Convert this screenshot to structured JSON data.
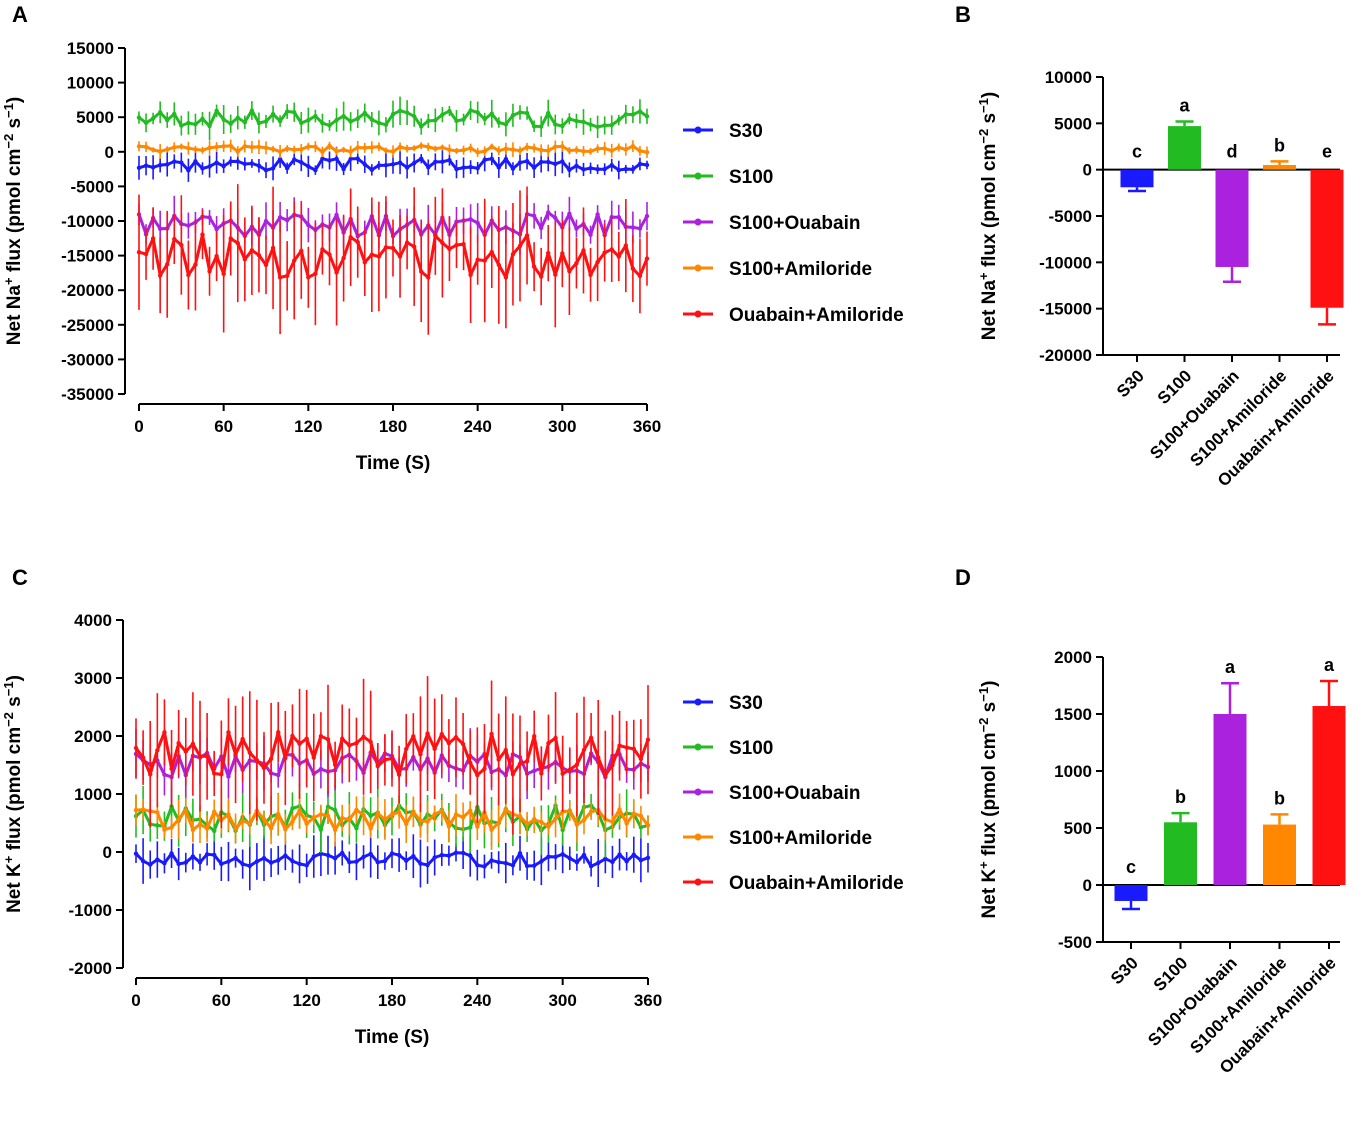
{
  "colors": {
    "S30": "#1a1aff",
    "S100": "#22bb22",
    "S100+Ouabain": "#aa22dd",
    "S100+Amiloride": "#ff8800",
    "Ouabain+Amiloride": "#ff1111"
  },
  "chart_data": [
    {
      "panel": "A",
      "type": "line",
      "xlabel": "Time (S)",
      "ylabel": "Net Na+ flux (pmol cm-2 s-1)",
      "ylabel_parts": {
        "pre": "Net Na",
        "sup1": "+",
        "mid": " flux (pmol cm",
        "sup2": "−2",
        "mid2": " s",
        "sup3": "−1",
        "post": ")"
      },
      "xlim": [
        0,
        360
      ],
      "ylim": [
        -35000,
        15000
      ],
      "xticks": [
        0,
        60,
        120,
        180,
        240,
        300,
        360
      ],
      "yticks": [
        15000,
        10000,
        5000,
        0,
        -5000,
        -10000,
        -15000,
        -20000,
        -25000,
        -30000,
        -35000
      ],
      "series": [
        {
          "name": "S30",
          "amp": 900,
          "err": 1500,
          "seed": 3,
          "values_mean": -1800
        },
        {
          "name": "S100",
          "amp": 1200,
          "err": 1800,
          "seed": 7,
          "values_mean": 4800
        },
        {
          "name": "S100+Ouabain",
          "amp": 1800,
          "err": 2500,
          "seed": 11,
          "values_mean": -10500
        },
        {
          "name": "S100+Amiloride",
          "amp": 500,
          "err": 900,
          "seed": 5,
          "values_mean": 400
        },
        {
          "name": "Ouabain+Amiloride",
          "amp": 3200,
          "err": 7500,
          "seed": 13,
          "values_mean": -15000
        }
      ]
    },
    {
      "panel": "B",
      "type": "bar",
      "ylabel": "Net Na+ flux (pmol cm-2 s-1)",
      "ylabel_parts": {
        "pre": "Net Na",
        "sup1": "+",
        "mid": " flux (pmol cm",
        "sup2": "−2",
        "mid2": " s",
        "sup3": "−1",
        "post": ")"
      },
      "ylim": [
        -20000,
        10000
      ],
      "yticks": [
        10000,
        5000,
        0,
        -5000,
        -10000,
        -15000,
        -20000
      ],
      "categories": [
        "S30",
        "S100",
        "S100+Ouabain",
        "S100+Amiloride",
        "Ouabain+Amiloride"
      ],
      "values": [
        -1900,
        4700,
        -10500,
        500,
        -14900
      ],
      "errors": [
        400,
        500,
        1600,
        400,
        1800
      ],
      "letters": [
        "c",
        "a",
        "d",
        "b",
        "e"
      ]
    },
    {
      "panel": "C",
      "type": "line",
      "xlabel": "Time (S)",
      "ylabel": "Net K+ flux (pmol cm-2 s-1)",
      "ylabel_parts": {
        "pre": "Net K",
        "sup1": "+",
        "mid": " flux (pmol cm",
        "sup2": "−2",
        "mid2": " s",
        "sup3": "−1",
        "post": ")"
      },
      "xlim": [
        0,
        360
      ],
      "ylim": [
        -2000,
        4000
      ],
      "xticks": [
        0,
        60,
        120,
        180,
        240,
        300,
        360
      ],
      "yticks": [
        4000,
        3000,
        2000,
        1000,
        0,
        -1000,
        -2000
      ],
      "series": [
        {
          "name": "S30",
          "amp": 120,
          "err": 350,
          "seed": 17,
          "values_mean": -130
        },
        {
          "name": "S100",
          "amp": 220,
          "err": 400,
          "seed": 19,
          "values_mean": 580
        },
        {
          "name": "S100+Ouabain",
          "amp": 220,
          "err": 400,
          "seed": 23,
          "values_mean": 1500
        },
        {
          "name": "S100+Amiloride",
          "amp": 180,
          "err": 300,
          "seed": 29,
          "values_mean": 560
        },
        {
          "name": "Ouabain+Amiloride",
          "amp": 380,
          "err": 900,
          "seed": 31,
          "values_mean": 1700
        }
      ]
    },
    {
      "panel": "D",
      "type": "bar",
      "ylabel": "Net K+ flux (pmol cm-2 s-1)",
      "ylabel_parts": {
        "pre": "Net K",
        "sup1": "+",
        "mid": " flux (pmol cm",
        "sup2": "−2",
        "mid2": " s",
        "sup3": "−1",
        "post": ")"
      },
      "ylim": [
        -500,
        2000
      ],
      "yticks": [
        2000,
        1500,
        1000,
        500,
        0,
        -500
      ],
      "categories": [
        "S30",
        "S100",
        "S100+Ouabain",
        "S100+Amiloride",
        "Ouabain+Amiloride"
      ],
      "values": [
        -140,
        550,
        1500,
        530,
        1570
      ],
      "errors": [
        70,
        80,
        270,
        90,
        220
      ],
      "letters": [
        "c",
        "b",
        "a",
        "b",
        "a"
      ]
    }
  ]
}
